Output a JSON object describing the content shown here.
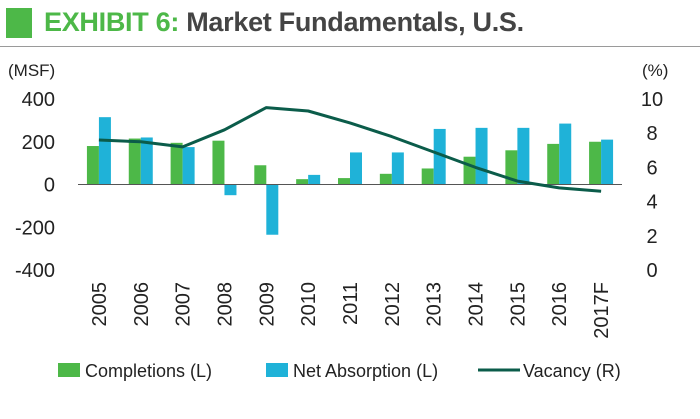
{
  "header": {
    "exhibit_label": "EXHIBIT 6:",
    "title": "Market Fundamentals, U.S."
  },
  "colors": {
    "completions": "#4db848",
    "net_absorption": "#1fb2d8",
    "vacancy": "#0b5c4a",
    "accent": "#4db848"
  },
  "chart_data": {
    "type": "bar",
    "title": "Market Fundamentals, U.S.",
    "categories": [
      "2005",
      "2006",
      "2007",
      "2008",
      "2009",
      "2010",
      "2011",
      "2012",
      "2013",
      "2014",
      "2015",
      "2016",
      "2017F"
    ],
    "left_axis": {
      "unit_label": "(MSF)",
      "ylim": [
        -400,
        400
      ],
      "ticks": [
        400,
        200,
        0,
        -200,
        -400
      ]
    },
    "right_axis": {
      "unit_label": "(%)",
      "ylim": [
        0,
        10
      ],
      "ticks": [
        10,
        8,
        6,
        4,
        2,
        0
      ]
    },
    "series": [
      {
        "name": "Completions (L)",
        "type": "bar",
        "axis": "left",
        "values": [
          180,
          215,
          195,
          205,
          90,
          25,
          30,
          50,
          75,
          130,
          160,
          190,
          200
        ]
      },
      {
        "name": "Net Absorption (L)",
        "type": "bar",
        "axis": "left",
        "values": [
          315,
          220,
          175,
          -50,
          -235,
          45,
          150,
          150,
          260,
          265,
          265,
          285,
          210
        ]
      },
      {
        "name": "Vacancy (R)",
        "type": "line",
        "axis": "right",
        "values": [
          7.6,
          7.5,
          7.2,
          8.2,
          9.5,
          9.3,
          8.6,
          7.8,
          6.9,
          6.0,
          5.2,
          4.8,
          4.6
        ]
      }
    ],
    "legend_position": "bottom"
  }
}
